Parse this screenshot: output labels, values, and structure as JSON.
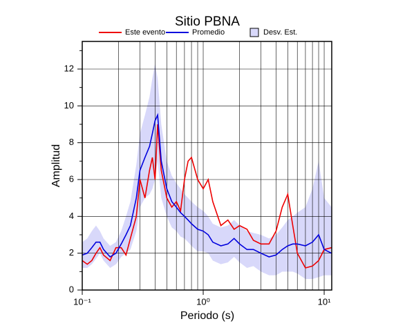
{
  "chart_data": {
    "type": "line",
    "title": "Sitio PBNA",
    "x_label": "Periodo (s)",
    "y_label": "Amplitud",
    "x_scale": "log",
    "grid": true,
    "x": [
      0.1,
      0.11,
      0.12,
      0.13,
      0.14,
      0.15,
      0.17,
      0.19,
      0.21,
      0.23,
      0.25,
      0.28,
      0.3,
      0.33,
      0.36,
      0.38,
      0.4,
      0.42,
      0.45,
      0.5,
      0.55,
      0.6,
      0.65,
      0.7,
      0.75,
      0.8,
      0.9,
      1.0,
      1.1,
      1.2,
      1.4,
      1.6,
      1.8,
      2.0,
      2.3,
      2.6,
      3.0,
      3.5,
      4.0,
      4.5,
      5.0,
      5.5,
      6.0,
      7.0,
      8.0,
      9.0,
      10,
      11.5
    ],
    "series": [
      {
        "name": "Este evento",
        "color": "#ee0000",
        "values": [
          1.6,
          1.4,
          1.6,
          2.0,
          2.3,
          1.9,
          1.6,
          2.3,
          2.3,
          1.9,
          2.8,
          4.0,
          6.0,
          5.0,
          6.5,
          7.2,
          6.0,
          9.0,
          6.5,
          5.0,
          4.5,
          4.8,
          4.3,
          6.0,
          7.0,
          7.2,
          6.0,
          5.5,
          6.0,
          4.8,
          3.5,
          3.8,
          3.3,
          3.5,
          3.3,
          2.7,
          2.5,
          2.5,
          3.2,
          4.5,
          5.2,
          3.5,
          2.0,
          1.2,
          1.3,
          1.6,
          2.2,
          2.3
        ]
      },
      {
        "name": "Promedio",
        "color": "#0000dd",
        "values": [
          1.9,
          2.0,
          2.3,
          2.6,
          2.6,
          2.2,
          1.8,
          2.0,
          2.5,
          3.0,
          3.5,
          5.0,
          6.5,
          7.2,
          7.8,
          8.5,
          9.2,
          9.5,
          7.0,
          5.5,
          4.8,
          4.5,
          4.2,
          4.0,
          3.8,
          3.6,
          3.3,
          3.2,
          3.0,
          2.6,
          2.4,
          2.5,
          2.8,
          2.5,
          2.2,
          2.2,
          2.0,
          1.8,
          1.9,
          2.2,
          2.4,
          2.5,
          2.5,
          2.4,
          2.6,
          3.0,
          2.2,
          2.0
        ]
      }
    ],
    "band": {
      "name": "Desv. Est.",
      "color": "#d8d8fa",
      "upper": [
        2.6,
        2.8,
        3.2,
        3.5,
        3.2,
        2.8,
        2.4,
        2.6,
        3.2,
        4.0,
        4.8,
        6.8,
        8.5,
        9.5,
        10.5,
        11.5,
        12.3,
        11.5,
        9.0,
        7.0,
        6.2,
        5.8,
        5.5,
        5.2,
        5.0,
        4.8,
        4.5,
        4.3,
        4.0,
        3.6,
        3.4,
        3.5,
        3.8,
        3.5,
        3.2,
        3.1,
        3.0,
        2.8,
        3.0,
        3.4,
        3.8,
        4.0,
        4.2,
        4.5,
        5.5,
        7.0,
        5.0,
        4.5
      ],
      "lower": [
        1.2,
        1.2,
        1.4,
        1.7,
        2.0,
        1.6,
        1.2,
        1.4,
        1.8,
        2.0,
        2.2,
        3.2,
        4.5,
        5.0,
        5.2,
        5.5,
        6.0,
        7.0,
        5.0,
        4.0,
        3.4,
        3.2,
        2.9,
        2.8,
        2.6,
        2.4,
        2.1,
        2.1,
        2.0,
        1.6,
        1.4,
        1.5,
        1.8,
        1.5,
        1.2,
        1.3,
        1.0,
        0.8,
        0.8,
        1.0,
        1.0,
        1.0,
        0.9,
        0.6,
        0.6,
        0.7,
        0.8,
        0.8
      ]
    },
    "xlim": [
      0.1,
      11.55
    ],
    "ylim": [
      0,
      13.5
    ],
    "xticks": [
      {
        "value": 0.1,
        "label": "10⁻¹"
      },
      {
        "value": 1,
        "label": "10⁰"
      },
      {
        "value": 10,
        "label": "10¹"
      }
    ],
    "xminor_ticks": [
      0.2,
      0.3,
      0.4,
      0.5,
      0.6,
      0.7,
      0.8,
      0.9,
      2,
      3,
      4,
      5,
      6,
      7,
      8,
      9
    ],
    "yticks": [
      0,
      2,
      4,
      6,
      8,
      10,
      12
    ],
    "yminor_ticks": [
      1,
      3,
      5,
      7,
      9,
      11,
      13
    ]
  }
}
